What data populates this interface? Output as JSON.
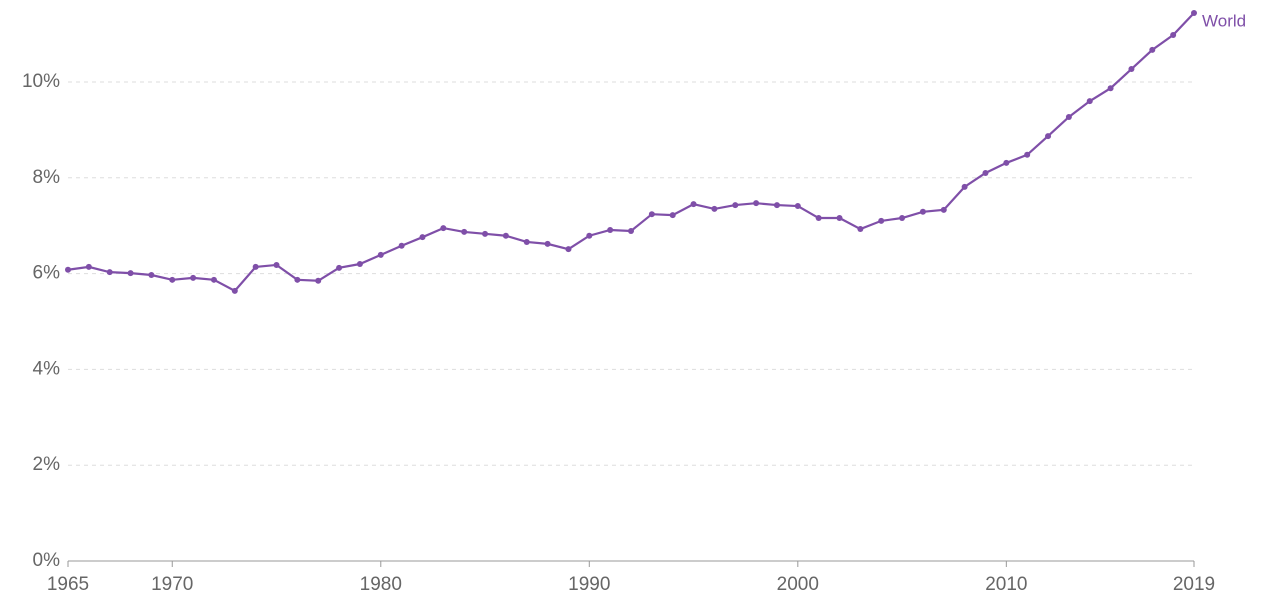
{
  "chart_data": {
    "type": "line",
    "x": [
      1965,
      1966,
      1967,
      1968,
      1969,
      1970,
      1971,
      1972,
      1973,
      1974,
      1975,
      1976,
      1977,
      1978,
      1979,
      1980,
      1981,
      1982,
      1983,
      1984,
      1985,
      1986,
      1987,
      1988,
      1989,
      1990,
      1991,
      1992,
      1993,
      1994,
      1995,
      1996,
      1997,
      1998,
      1999,
      2000,
      2001,
      2002,
      2003,
      2004,
      2005,
      2006,
      2007,
      2008,
      2009,
      2010,
      2011,
      2012,
      2013,
      2014,
      2015,
      2016,
      2017,
      2018,
      2019
    ],
    "series": [
      {
        "name": "World",
        "color": "#7f4fa8",
        "values": [
          6.08,
          6.14,
          6.03,
          6.01,
          5.97,
          5.87,
          5.91,
          5.87,
          5.64,
          6.14,
          6.18,
          5.87,
          5.85,
          6.12,
          6.2,
          6.39,
          6.58,
          6.76,
          6.95,
          6.87,
          6.83,
          6.79,
          6.66,
          6.62,
          6.51,
          6.79,
          6.91,
          6.89,
          7.24,
          7.22,
          7.45,
          7.35,
          7.43,
          7.47,
          7.43,
          7.41,
          7.16,
          7.16,
          6.93,
          7.1,
          7.16,
          7.29,
          7.33,
          7.81,
          8.1,
          8.31,
          8.48,
          8.87,
          9.27,
          9.6,
          9.87,
          10.27,
          10.67,
          10.98,
          11.44
        ]
      }
    ],
    "xlim": [
      1965,
      2019
    ],
    "xticks": [
      1965,
      1970,
      1980,
      1990,
      2000,
      2010,
      2019
    ],
    "ylim": [
      0,
      11.44
    ],
    "yticks": [
      {
        "value": 0,
        "label": "0%"
      },
      {
        "value": 2,
        "label": "2%"
      },
      {
        "value": 4,
        "label": "4%"
      },
      {
        "value": 6,
        "label": "6%"
      },
      {
        "value": 8,
        "label": "8%"
      },
      {
        "value": 10,
        "label": "10%"
      }
    ],
    "grid": true
  }
}
